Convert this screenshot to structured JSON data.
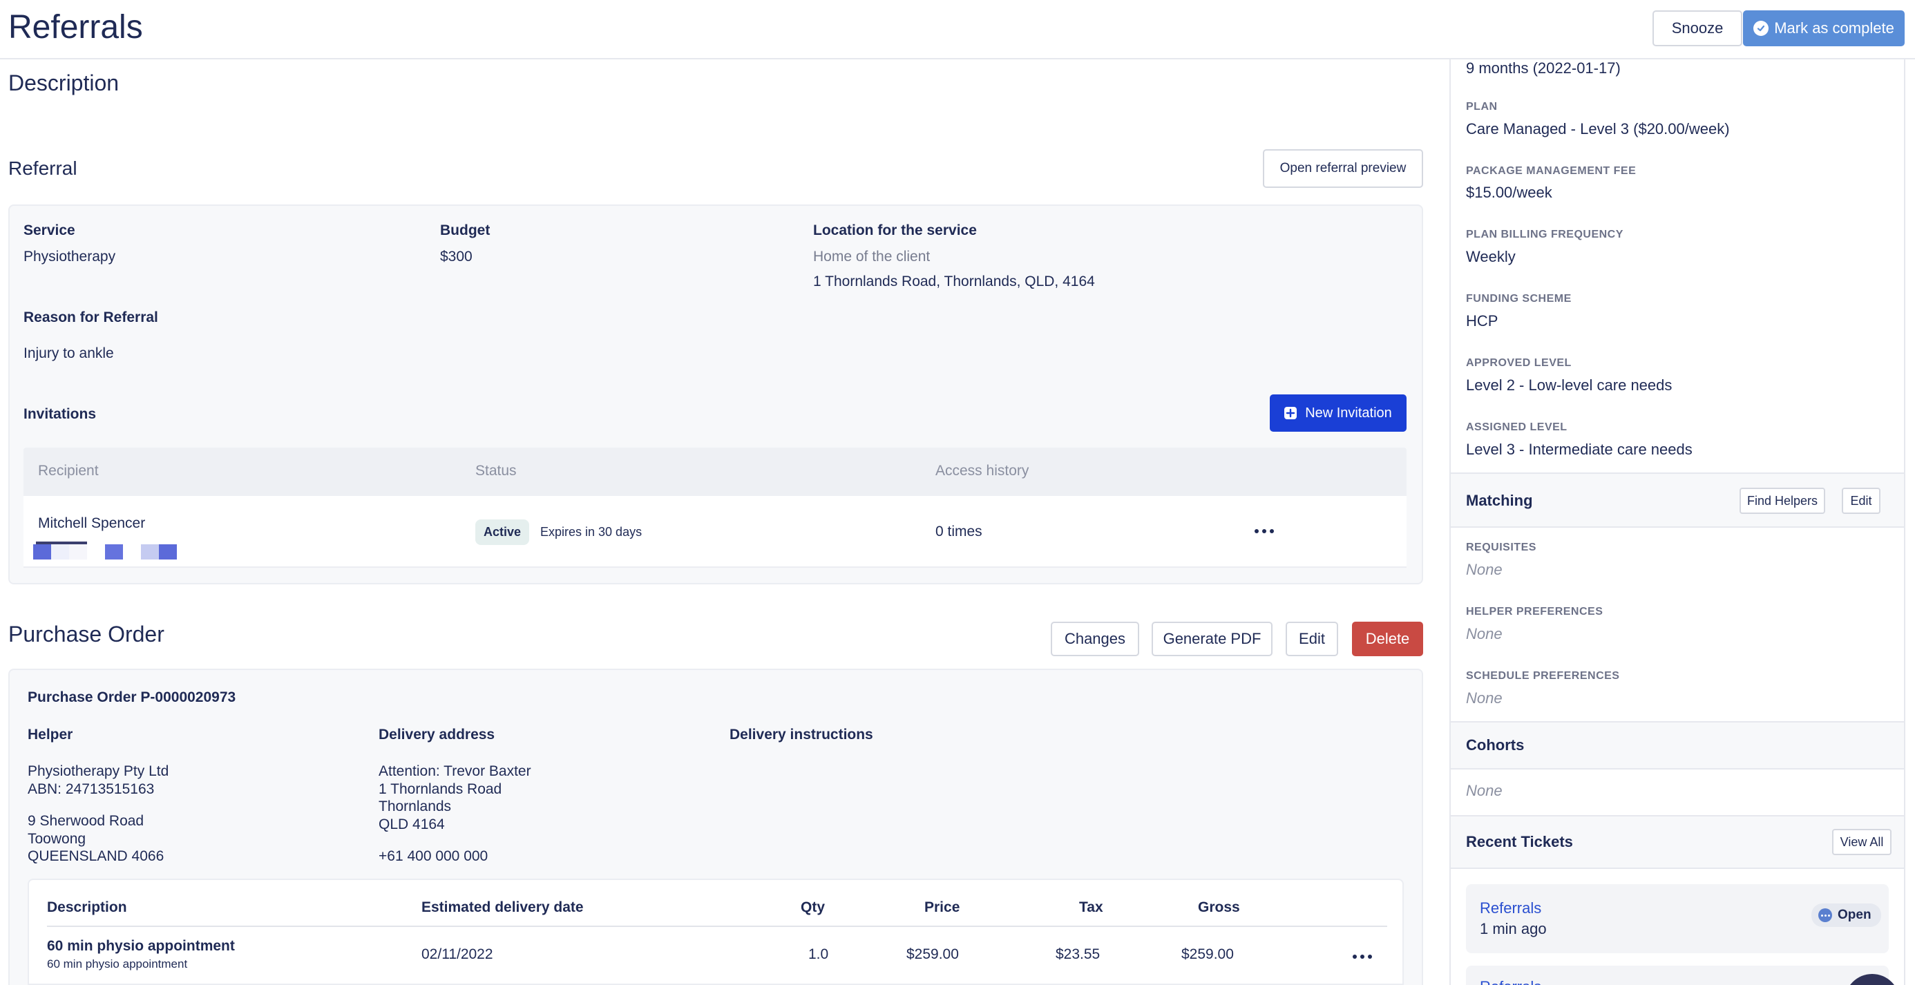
{
  "header": {
    "title": "Referrals",
    "snooze_label": "Snooze",
    "complete_label": "Mark as complete"
  },
  "description": {
    "title": "Description"
  },
  "referral": {
    "title": "Referral",
    "preview_label": "Open referral preview",
    "service_label": "Service",
    "service_value": "Physiotherapy",
    "budget_label": "Budget",
    "budget_value": "$300",
    "location_label": "Location for the service",
    "location_type": "Home of the client",
    "location_address": "1 Thornlands Road, Thornlands, QLD, 4164",
    "reason_label": "Reason for Referral",
    "reason_value": "Injury to ankle",
    "invitations_label": "Invitations",
    "new_invitation_label": "New Invitation",
    "table": {
      "headers": [
        "Recipient",
        "Status",
        "Access history"
      ],
      "rows": [
        {
          "recipient": "Mitchell Spencer",
          "status": "Active",
          "expires": "Expires in 30 days",
          "access": "0 times"
        }
      ]
    }
  },
  "purchase_order": {
    "title": "Purchase Order",
    "changes_label": "Changes",
    "pdf_label": "Generate PDF",
    "edit_label": "Edit",
    "delete_label": "Delete",
    "number": "Purchase Order P-0000020973",
    "helper_label": "Helper",
    "helper_lines": [
      "Physiotherapy Pty Ltd",
      "ABN: 24713515163",
      "",
      "9 Sherwood Road",
      "Toowong",
      "QUEENSLAND 4066"
    ],
    "delivery_label": "Delivery address",
    "delivery_lines": [
      "Attention: Trevor Baxter",
      "1 Thornlands Road",
      "Thornlands",
      "QLD 4164",
      "",
      "+61 400 000 000"
    ],
    "instructions_label": "Delivery instructions",
    "items": {
      "headers": [
        "Description",
        "Estimated delivery date",
        "Qty",
        "Price",
        "Tax",
        "Gross"
      ],
      "rows": [
        {
          "description": "60 min physio appointment",
          "sub": "60 min physio appointment",
          "date": "02/11/2022",
          "qty": "1.0",
          "price": "$259.00",
          "tax": "$23.55",
          "gross": "$259.00"
        }
      ]
    }
  },
  "right": {
    "duration_value": "9 months (2022-01-17)",
    "fields": [
      {
        "label": "PLAN",
        "value": "Care Managed - Level 3 ($20.00/week)"
      },
      {
        "label": "PACKAGE MANAGEMENT FEE",
        "value": "$15.00/week"
      },
      {
        "label": "PLAN BILLING FREQUENCY",
        "value": "Weekly"
      },
      {
        "label": "FUNDING SCHEME",
        "value": "HCP"
      },
      {
        "label": "APPROVED LEVEL",
        "value": "Level 2 - Low-level care needs"
      },
      {
        "label": "ASSIGNED LEVEL",
        "value": "Level 3 - Intermediate care needs"
      }
    ],
    "matching": {
      "title": "Matching",
      "find_helpers_label": "Find Helpers",
      "edit_label": "Edit",
      "fields": [
        {
          "label": "REQUISITES",
          "value": "None"
        },
        {
          "label": "HELPER PREFERENCES",
          "value": "None"
        },
        {
          "label": "SCHEDULE PREFERENCES",
          "value": "None"
        }
      ]
    },
    "cohorts": {
      "title": "Cohorts",
      "value": "None"
    },
    "tickets": {
      "title": "Recent Tickets",
      "view_all_label": "View All",
      "items": [
        {
          "title": "Referrals",
          "time": "1 min ago",
          "status": "Open"
        },
        {
          "title": "Referrals"
        }
      ]
    }
  }
}
